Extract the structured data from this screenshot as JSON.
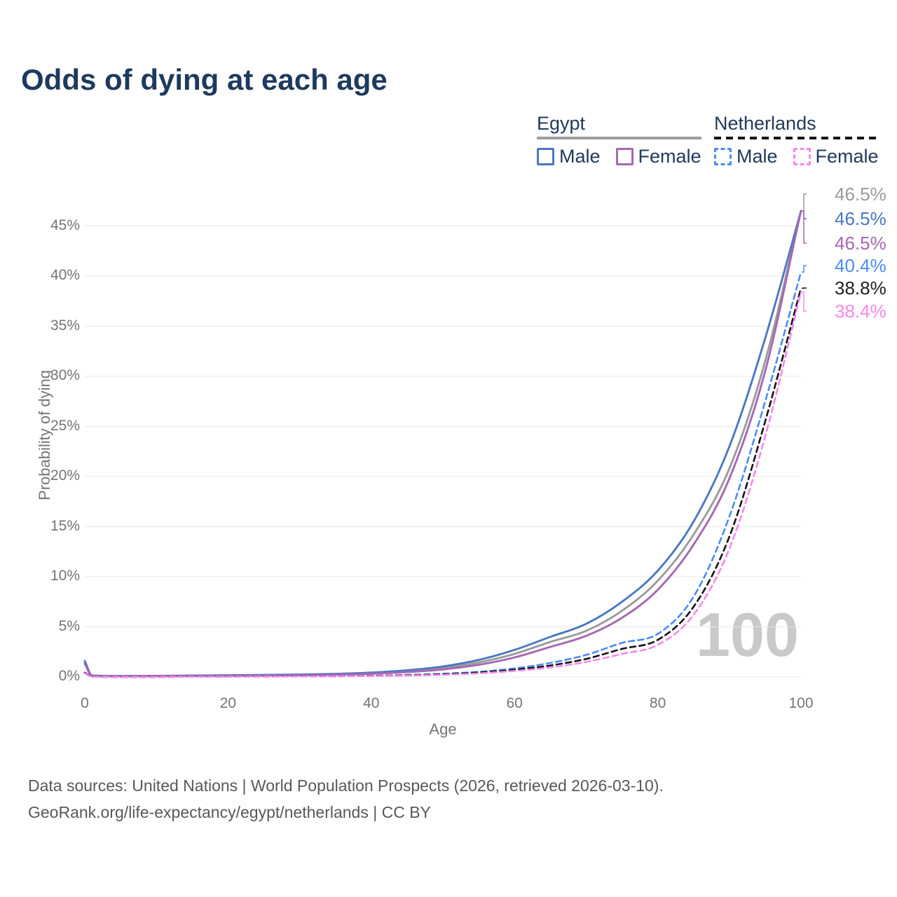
{
  "title": "Odds of dying at each age",
  "legend": {
    "egypt": {
      "heading": "Egypt",
      "male_label": "Male",
      "female_label": "Female"
    },
    "netherlands": {
      "heading": "Netherlands",
      "male_label": "Male",
      "female_label": "Female"
    }
  },
  "watermark": "100",
  "footer": {
    "line1": "Data sources: United Nations | World Population Prospects (2026, retrieved 2026-03-10).",
    "line2": "GeoRank.org/life-expectancy/egypt/netherlands | CC BY"
  },
  "colors": {
    "title_text": "#1d3a5e",
    "legend_text": "#22395c",
    "axis_text": "#757575",
    "grid": "#e8e8e8",
    "watermark": "#c9c9c9",
    "footer_text": "#58585a",
    "egypt_underline": "#9e9e9e",
    "netherlands_underline": "#141414",
    "egypt_flag": {
      "red": "#ce1126",
      "white": "#ffffff",
      "black": "#161616",
      "eagle_gold": "#e0a33e"
    },
    "netherlands_flag": {
      "red": "#ae1c28",
      "white": "#f5f5f5",
      "blue": "#21468b"
    }
  },
  "chart_data": {
    "type": "line",
    "title": "Odds of dying at each age",
    "xlabel": "Age",
    "ylabel": "Probability of dying",
    "xlim": [
      0,
      100
    ],
    "ylim": [
      0,
      47
    ],
    "x_ticks": [
      "0",
      "20",
      "40",
      "60",
      "80",
      "100"
    ],
    "y_ticks": [
      "0%",
      "5%",
      "10%",
      "15%",
      "20%",
      "25%",
      "30%",
      "35%",
      "40%",
      "45%"
    ],
    "grid": "horizontal-only",
    "legend_position": "top-right",
    "x": [
      0,
      1,
      5,
      10,
      15,
      20,
      25,
      30,
      35,
      40,
      45,
      50,
      55,
      60,
      65,
      70,
      75,
      80,
      85,
      90,
      95,
      100
    ],
    "series": [
      {
        "id": "egypt-both",
        "country": "Egypt",
        "sex": "both",
        "style": "solid",
        "color": "#9a9a9a",
        "end_label": "46.5%",
        "values": [
          1.45,
          0.13,
          0.09,
          0.1,
          0.12,
          0.15,
          0.18,
          0.21,
          0.27,
          0.38,
          0.58,
          0.9,
          1.45,
          2.3,
          3.5,
          4.6,
          6.6,
          9.6,
          14.2,
          20.8,
          31.5,
          46.5
        ]
      },
      {
        "id": "egypt-male",
        "country": "Egypt",
        "sex": "male",
        "style": "solid",
        "color": "#4a78c2",
        "end_label": "46.5%",
        "values": [
          1.6,
          0.15,
          0.1,
          0.11,
          0.14,
          0.17,
          0.2,
          0.24,
          0.31,
          0.44,
          0.67,
          1.05,
          1.7,
          2.7,
          4.0,
          5.3,
          7.5,
          10.6,
          15.5,
          23.0,
          33.8,
          46.5
        ]
      },
      {
        "id": "egypt-female",
        "country": "Egypt",
        "sex": "female",
        "style": "solid",
        "color": "#a568b3",
        "end_label": "46.5%",
        "values": [
          1.3,
          0.12,
          0.08,
          0.09,
          0.1,
          0.12,
          0.15,
          0.18,
          0.23,
          0.32,
          0.48,
          0.75,
          1.22,
          1.95,
          3.0,
          4.1,
          5.9,
          8.7,
          13.2,
          19.8,
          30.5,
          46.5
        ]
      },
      {
        "id": "netherlands-male",
        "country": "Netherlands",
        "sex": "male",
        "style": "dashed",
        "color": "#4b8bf5",
        "end_label": "40.4%",
        "values": [
          0.45,
          0.04,
          0.01,
          0.01,
          0.03,
          0.05,
          0.06,
          0.07,
          0.09,
          0.13,
          0.2,
          0.32,
          0.52,
          0.85,
          1.4,
          2.2,
          3.4,
          4.3,
          8.0,
          16.0,
          27.5,
          40.4
        ]
      },
      {
        "id": "netherlands-both",
        "country": "Netherlands",
        "sex": "both",
        "style": "dashed",
        "color": "#141414",
        "end_label": "38.8%",
        "values": [
          0.4,
          0.035,
          0.01,
          0.01,
          0.025,
          0.04,
          0.05,
          0.06,
          0.08,
          0.11,
          0.17,
          0.27,
          0.44,
          0.72,
          1.15,
          1.8,
          2.8,
          3.7,
          7.0,
          14.0,
          25.5,
          38.8
        ]
      },
      {
        "id": "netherlands-female",
        "country": "Netherlands",
        "sex": "female",
        "style": "dashed",
        "color": "#fb85ec",
        "end_label": "38.4%",
        "values": [
          0.35,
          0.03,
          0.01,
          0.01,
          0.02,
          0.03,
          0.04,
          0.05,
          0.07,
          0.1,
          0.14,
          0.22,
          0.36,
          0.6,
          0.95,
          1.5,
          2.3,
          3.2,
          6.2,
          12.8,
          24.0,
          38.4
        ]
      }
    ]
  }
}
